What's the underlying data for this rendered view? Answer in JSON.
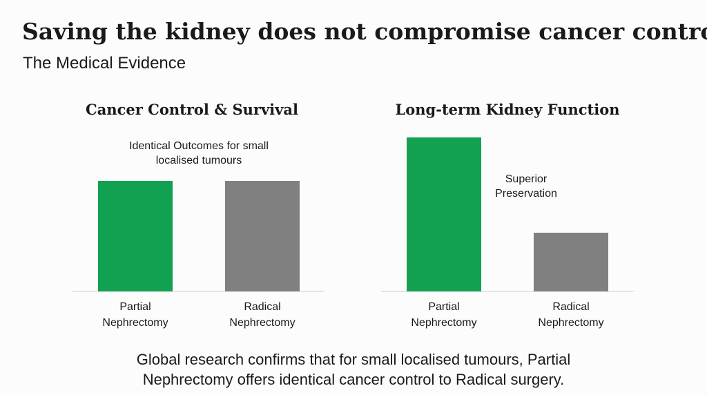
{
  "title": "Saving the kidney does not compromise cancer control",
  "subtitle": "The Medical Evidence",
  "caption": "Global research confirms that for small localised tumours, Partial Nephrectomy offers identical cancer control to Radical surgery.",
  "chart_data": [
    {
      "type": "bar",
      "title": "Cancer Control & Survival",
      "annotation": "Identical Outcomes for small localised tumours",
      "categories": [
        "Partial Nephrectomy",
        "Radical Nephrectomy"
      ],
      "values": [
        160,
        160
      ],
      "colors": [
        "#12a150",
        "#808080"
      ]
    },
    {
      "type": "bar",
      "title": "Long-term Kidney Function",
      "annotation": "Superior Preservation",
      "categories": [
        "Partial Nephrectomy",
        "Radical Nephrectomy"
      ],
      "values": [
        223,
        85
      ],
      "colors": [
        "#12a150",
        "#808080"
      ]
    }
  ]
}
